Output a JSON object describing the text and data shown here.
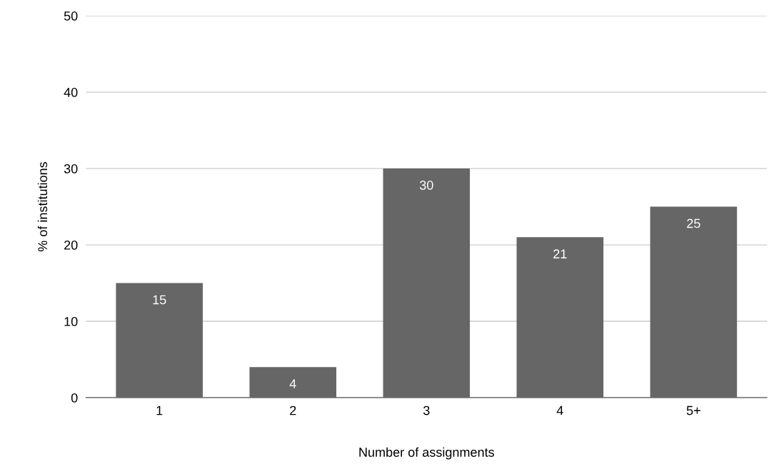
{
  "chart_data": {
    "type": "bar",
    "xlabel": "Number of assignments",
    "ylabel": "% of institutions",
    "categories": [
      "1",
      "2",
      "3",
      "4",
      "5+"
    ],
    "values": [
      15,
      4,
      30,
      21,
      25
    ],
    "color": "#666666",
    "ylim": [
      0,
      50
    ],
    "yticks": [
      0,
      10,
      20,
      30,
      40,
      50
    ],
    "grid": "y",
    "data_labels": true,
    "legend": false
  }
}
